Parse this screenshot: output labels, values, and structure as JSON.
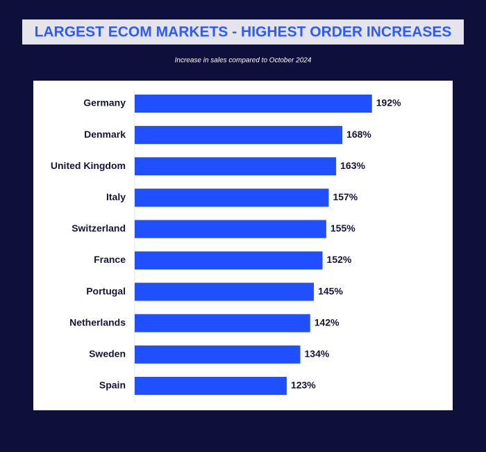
{
  "chart_data": {
    "type": "bar",
    "orientation": "horizontal",
    "title": "LARGEST ECOM MARKETS - HIGHEST ORDER INCREASES",
    "subtitle": "Increase in sales compared to October 2024",
    "categories": [
      "Germany",
      "Denmark",
      "United Kingdom",
      "Italy",
      "Switzerland",
      "France",
      "Portugal",
      "Netherlands",
      "Sweden",
      "Spain"
    ],
    "values": [
      192,
      168,
      163,
      157,
      155,
      152,
      145,
      142,
      134,
      123
    ],
    "value_labels": [
      "192%",
      "168%",
      "163%",
      "157%",
      "155%",
      "152%",
      "145%",
      "142%",
      "134%",
      "123%"
    ],
    "color": "#1f4fff"
  }
}
